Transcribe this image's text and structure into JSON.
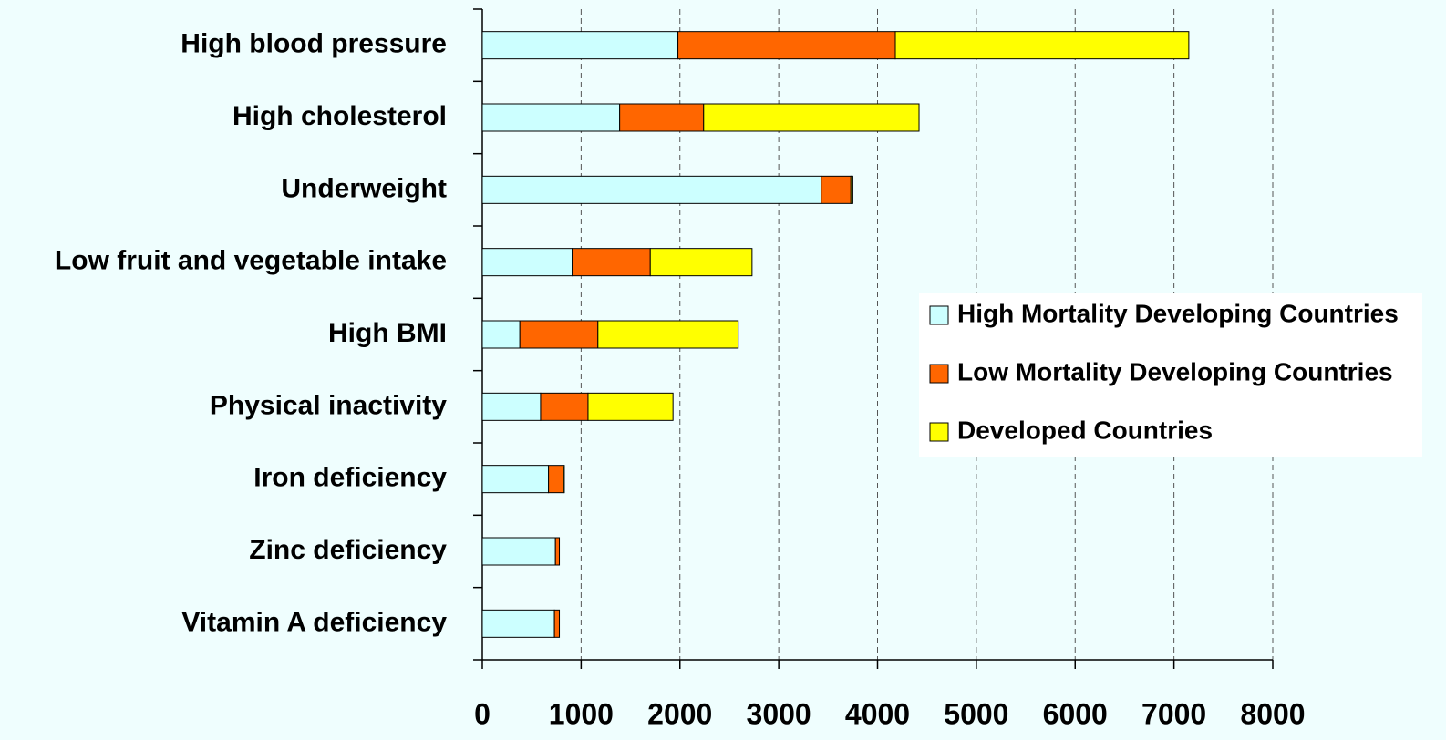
{
  "chart_data": {
    "type": "stacked_bar_horizontal",
    "categories": [
      "High blood pressure",
      "High cholesterol",
      "Underweight",
      "Low fruit and vegetable intake",
      "High BMI",
      "Physical inactivity",
      "Iron deficiency",
      "Zinc deficiency",
      "Vitamin A deficiency"
    ],
    "series": [
      {
        "name": "High Mortality Developing Countries",
        "color": "#ccffff",
        "values": [
          1980,
          1390,
          3430,
          910,
          380,
          590,
          670,
          740,
          730
        ]
      },
      {
        "name": "Low Mortality Developing Countries",
        "color": "#ff6600",
        "values": [
          2200,
          850,
          300,
          790,
          790,
          480,
          150,
          40,
          50
        ]
      },
      {
        "name": "Developed Countries",
        "color": "#ffff00",
        "values": [
          2970,
          2180,
          20,
          1030,
          1420,
          860,
          10,
          0,
          0
        ]
      }
    ],
    "xlim": [
      0,
      8000
    ],
    "xticks": [
      0,
      1000,
      2000,
      3000,
      4000,
      5000,
      6000,
      7000,
      8000
    ],
    "grid": true,
    "legend": "right"
  }
}
